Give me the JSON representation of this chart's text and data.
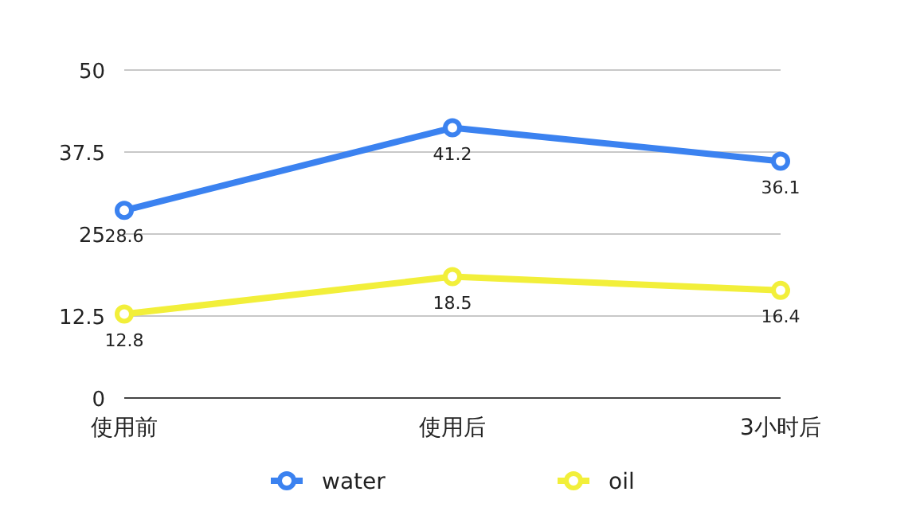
{
  "chart_data": {
    "type": "line",
    "categories": [
      "使用前",
      "使用后",
      "3小时后"
    ],
    "series": [
      {
        "name": "water",
        "color": "#3b82f0",
        "values": [
          28.6,
          41.2,
          36.1
        ]
      },
      {
        "name": "oil",
        "color": "#f2ef3a",
        "values": [
          12.8,
          18.5,
          16.4
        ]
      }
    ],
    "ylim": [
      0,
      50
    ],
    "yticks": [
      0,
      12.5,
      25,
      37.5,
      50
    ],
    "grid": "y",
    "legend": "bottom",
    "marker": "circle",
    "data_labels": true
  }
}
